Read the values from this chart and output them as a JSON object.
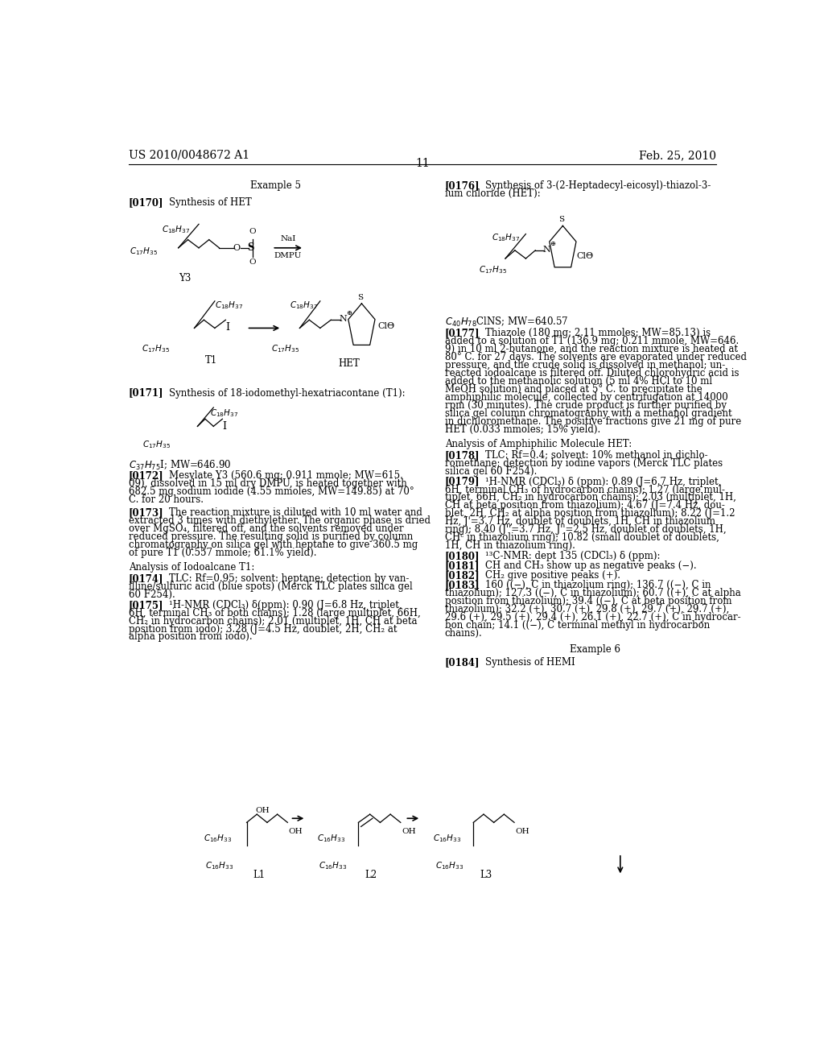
{
  "background_color": "#ffffff",
  "header_left": "US 2010/0048672 A1",
  "header_right": "Feb. 25, 2010",
  "page_number": "11",
  "font_family": "serif",
  "body_fontsize": 8.5,
  "small_fontsize": 7.5
}
